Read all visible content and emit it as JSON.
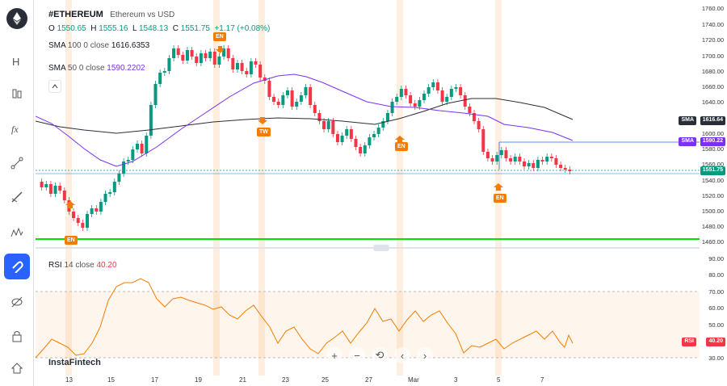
{
  "symbol": "#ETHEREUM",
  "description": "Ethereum vs USD",
  "ohlc": {
    "o_label": "O",
    "o": "1550.65",
    "h_label": "H",
    "h": "1555.16",
    "l_label": "L",
    "l": "1548.13",
    "c_label": "C",
    "c": "1551.75",
    "change": "+1.17 (+0.08%)"
  },
  "sma100": {
    "label": "SMA",
    "length": "100",
    "offset": "0",
    "source": "close",
    "value": "1616.6353"
  },
  "sma50": {
    "label": "SMA",
    "length": "50",
    "offset": "0",
    "source": "close",
    "value": "1590.2202"
  },
  "rsi": {
    "label": "RSI",
    "length": "14",
    "source": "close",
    "value": "40.20"
  },
  "watermark": "InstaFintech",
  "price_ticks": [
    "1760.00",
    "1740.00",
    "1720.00",
    "1700.00",
    "1680.00",
    "1660.00",
    "1640.00",
    "1620.00",
    "1600.00",
    "1580.00",
    "1560.00",
    "1540.00",
    "1520.00",
    "1500.00",
    "1480.00",
    "1460.00"
  ],
  "rsi_ticks": [
    "90.00",
    "80.00",
    "70.00",
    "60.00",
    "50.00",
    "30.00"
  ],
  "tags": {
    "sma100_tag": "SMA",
    "sma100_val": "1616.64",
    "sma50_tag": "SMA",
    "sma50_val": "1590.22",
    "price_val": "1551.75",
    "rsi_tag": "RSI",
    "rsi_val": "40.20"
  },
  "dates": [
    "13",
    "15",
    "17",
    "19",
    "21",
    "23",
    "25",
    "27",
    "Mar",
    "3",
    "5",
    "7"
  ],
  "events": [
    "EN",
    "TW",
    "EN",
    "EN",
    "EN"
  ],
  "colors": {
    "up": "#089981",
    "down": "#f23645",
    "sma100": "#2a2e39",
    "sma50": "#7b2ff7",
    "support": "#00e600",
    "rsi": "#f57c00",
    "accent": "#2962ff"
  },
  "sidebar_icons": [
    "logo-icon",
    "line-tool-icon",
    "candles-icon",
    "fx-icon",
    "node-icon",
    "brush-icon",
    "pattern-icon",
    "magnet-icon",
    "eye-off-icon",
    "lock-icon",
    "home-icon"
  ],
  "controls": [
    "+",
    "−",
    "⟲",
    "‹",
    "›"
  ]
}
